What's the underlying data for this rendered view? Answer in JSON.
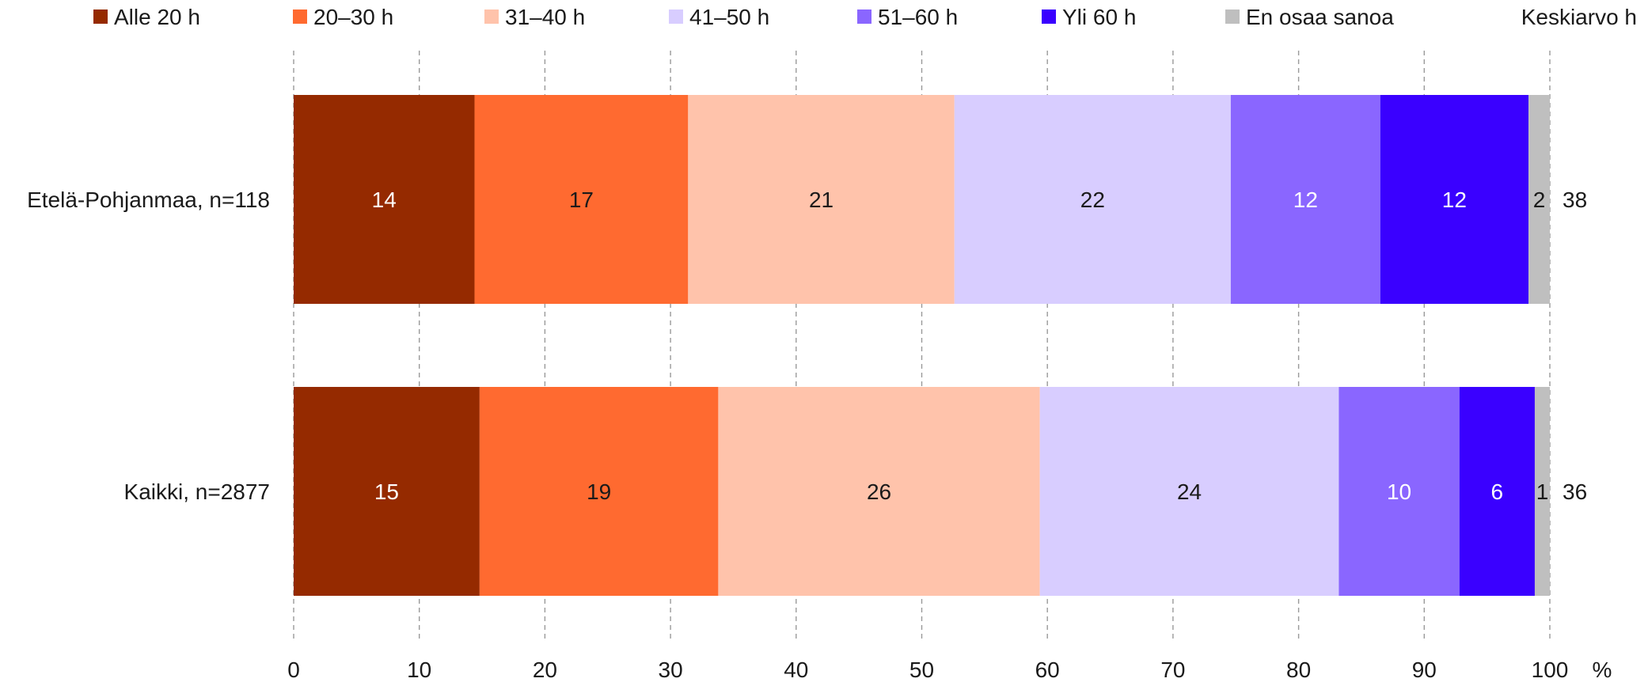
{
  "chart_data": {
    "type": "bar",
    "orientation": "horizontal",
    "stacked": true,
    "title": "",
    "xlabel": "",
    "ylabel": "",
    "x_unit": "%",
    "xlim": [
      0,
      100
    ],
    "x_ticks": [
      0,
      10,
      20,
      30,
      40,
      50,
      60,
      70,
      80,
      90,
      100
    ],
    "grid": "vertical dashed",
    "legend_position": "top",
    "categories": [
      "Etelä-Pohjanmaa, n=118",
      "Kaikki, n=2877"
    ],
    "series": [
      {
        "name": "Alle 20 h",
        "color": "#952A00",
        "label_color": "#ffffff",
        "values": [
          14.4,
          14.8
        ],
        "labels": [
          "14",
          "15"
        ]
      },
      {
        "name": "20–30 h",
        "color": "#FF6A30",
        "label_color": "#1a1a1a",
        "values": [
          17.0,
          19.0
        ],
        "labels": [
          "17",
          "19"
        ]
      },
      {
        "name": "31–40 h",
        "color": "#FFC3AB",
        "label_color": "#1a1a1a",
        "values": [
          21.2,
          25.6
        ],
        "labels": [
          "21",
          "26"
        ]
      },
      {
        "name": "41–50 h",
        "color": "#D8CDFF",
        "label_color": "#1a1a1a",
        "values": [
          22.0,
          23.8
        ],
        "labels": [
          "22",
          "24"
        ]
      },
      {
        "name": "51–60 h",
        "color": "#8A66FF",
        "label_color": "#ffffff",
        "values": [
          11.9,
          9.6
        ],
        "labels": [
          "12",
          "10"
        ]
      },
      {
        "name": "Yli 60 h",
        "color": "#3A00FF",
        "label_color": "#ffffff",
        "values": [
          11.8,
          6.0
        ],
        "labels": [
          "12",
          "6"
        ]
      },
      {
        "name": "En osaa sanoa",
        "color": "#BFBFBF",
        "label_color": "#1a1a1a",
        "values": [
          1.7,
          1.2
        ],
        "labels": [
          "2",
          "1"
        ]
      }
    ],
    "extra_column": {
      "header": "Keskiarvo h",
      "values": [
        "38",
        "36"
      ]
    }
  }
}
